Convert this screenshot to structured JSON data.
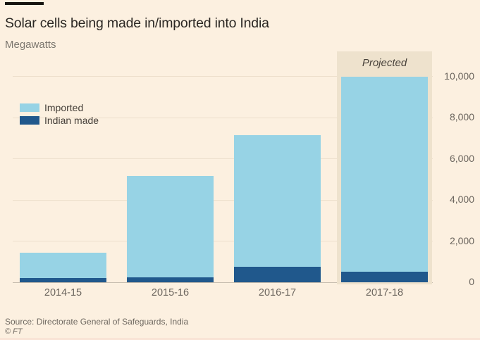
{
  "theme": {
    "background": "#FCF0E0",
    "projected_band": "#EEE2CD",
    "gridline": "#EDDFCC",
    "axis_line": "#C6BCAE",
    "title_color": "#2B2723",
    "muted_text": "#6B655E"
  },
  "header": {
    "title": "Solar cells being made in/imported into India",
    "subtitle": "Megawatts"
  },
  "footer": {
    "source": "Source: Directorate General of Safeguards, India",
    "copyright": "© FT"
  },
  "chart_data": {
    "type": "bar",
    "stacked": true,
    "title": "Solar cells being made in/imported into India",
    "ylabel": "Megawatts",
    "categories": [
      "2014-15",
      "2015-16",
      "2016-17",
      "2017-18"
    ],
    "series": [
      {
        "name": "Imported",
        "color": "#97D3E5",
        "values": [
          1250,
          4900,
          6400,
          9500
        ]
      },
      {
        "name": "Indian made",
        "color": "#20588C",
        "values": [
          200,
          250,
          750,
          500
        ]
      }
    ],
    "ylim": [
      0,
      10000
    ],
    "yticks": [
      0,
      2000,
      4000,
      6000,
      8000,
      10000
    ],
    "ytick_labels": [
      "0",
      "2,000",
      "4,000",
      "6,000",
      "8,000",
      "10,000"
    ],
    "y_axis_side": "right",
    "grid": "horizontal",
    "legend_position": "top-left",
    "annotation": {
      "label": "Projected",
      "category": "2017-18"
    }
  }
}
